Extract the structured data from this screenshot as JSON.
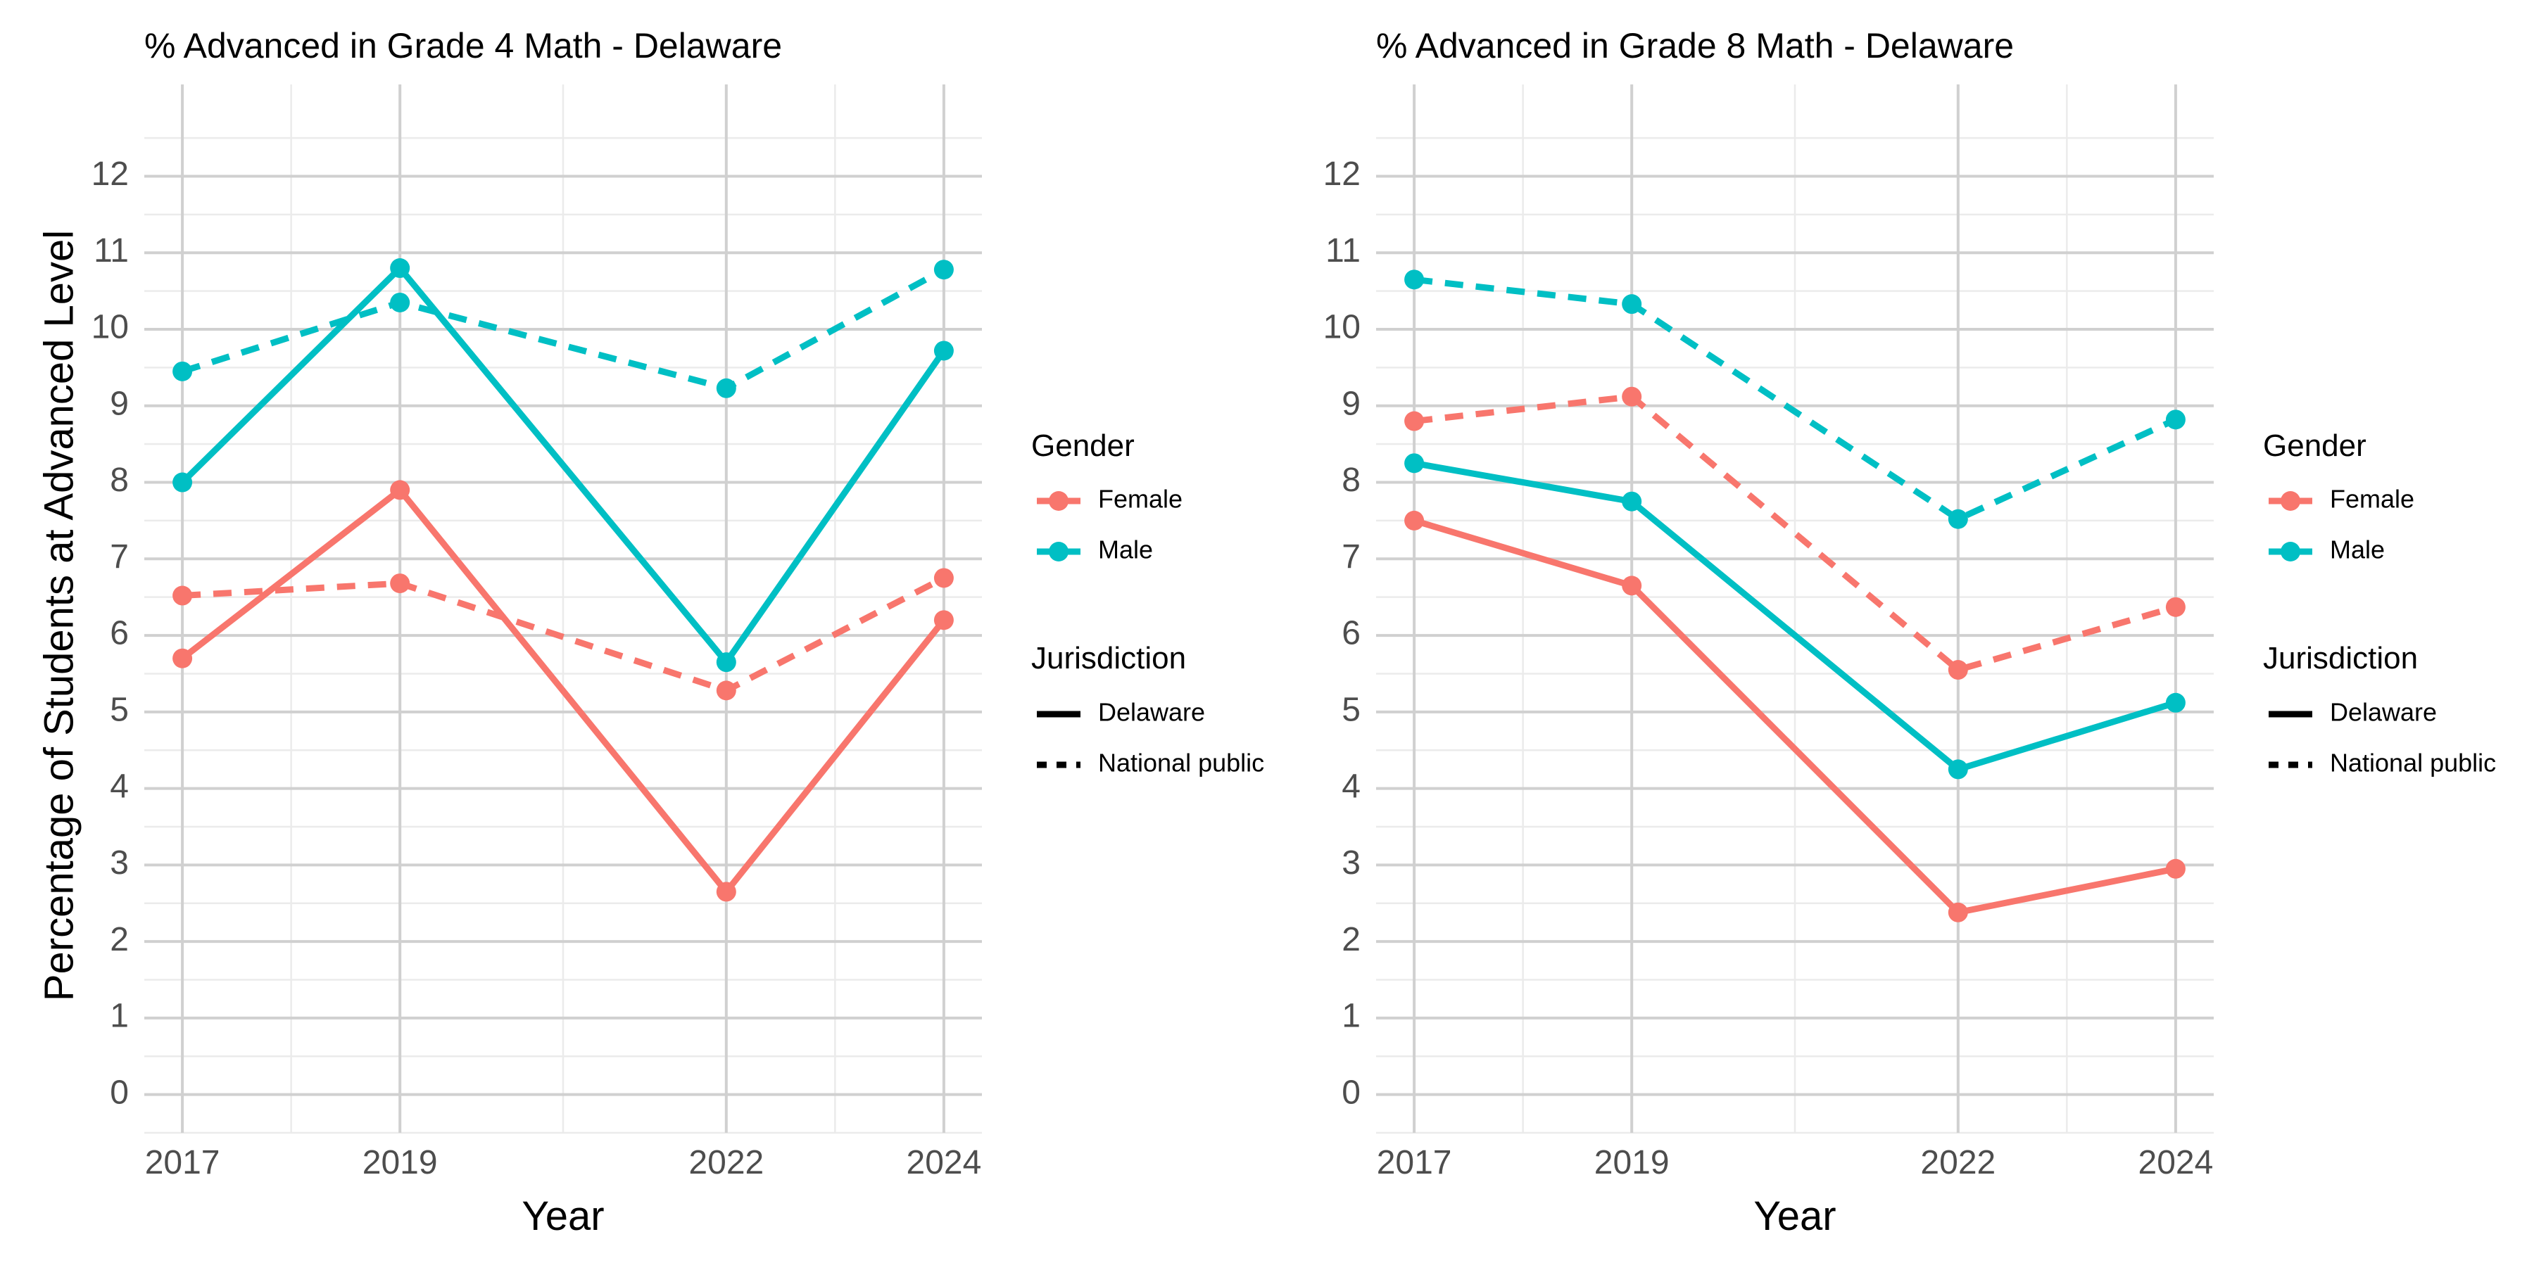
{
  "figure": {
    "ylabel": "Percentage of Students at Advanced Level"
  },
  "legend": {
    "gender_title": "Gender",
    "gender_items": [
      {
        "label": "Female",
        "color": "#F8766D"
      },
      {
        "label": "Male",
        "color": "#00BFC4"
      }
    ],
    "jurisdiction_title": "Jurisdiction",
    "jurisdiction_items": [
      {
        "label": "Delaware",
        "linetype": "solid"
      },
      {
        "label": "National public",
        "linetype": "dashed"
      }
    ]
  },
  "chart_data": [
    {
      "type": "line",
      "title": "% Advanced in Grade 4 Math - Delaware",
      "xlabel": "Year",
      "ylabel": "Percentage of Students at Advanced Level",
      "x": [
        2017,
        2019,
        2022,
        2024
      ],
      "xticks": [
        "2017",
        "2019",
        "2022",
        "2024"
      ],
      "yticks": [
        "0",
        "1",
        "2",
        "3",
        "4",
        "5",
        "6",
        "7",
        "8",
        "9",
        "10",
        "11",
        "12"
      ],
      "ylim": [
        -0.5,
        13.2
      ],
      "xlim": [
        2016.65,
        2024.35
      ],
      "grid": true,
      "series": [
        {
          "gender": "Female",
          "jurisdiction": "Delaware",
          "values": [
            5.7,
            7.9,
            2.65,
            6.2
          ]
        },
        {
          "gender": "Male",
          "jurisdiction": "Delaware",
          "values": [
            8.0,
            10.8,
            5.65,
            9.72
          ]
        },
        {
          "gender": "Female",
          "jurisdiction": "National public",
          "values": [
            6.52,
            6.68,
            5.28,
            6.75
          ]
        },
        {
          "gender": "Male",
          "jurisdiction": "National public",
          "values": [
            9.45,
            10.35,
            9.23,
            10.78
          ]
        }
      ]
    },
    {
      "type": "line",
      "title": "% Advanced in Grade 8 Math - Delaware",
      "xlabel": "Year",
      "ylabel": "",
      "x": [
        2017,
        2019,
        2022,
        2024
      ],
      "xticks": [
        "2017",
        "2019",
        "2022",
        "2024"
      ],
      "yticks": [
        "0",
        "1",
        "2",
        "3",
        "4",
        "5",
        "6",
        "7",
        "8",
        "9",
        "10",
        "11",
        "12"
      ],
      "ylim": [
        -0.5,
        13.2
      ],
      "xlim": [
        2016.65,
        2024.35
      ],
      "grid": true,
      "series": [
        {
          "gender": "Female",
          "jurisdiction": "Delaware",
          "values": [
            7.5,
            6.65,
            2.38,
            2.95
          ]
        },
        {
          "gender": "Male",
          "jurisdiction": "Delaware",
          "values": [
            8.25,
            7.75,
            4.25,
            5.12
          ]
        },
        {
          "gender": "Female",
          "jurisdiction": "National public",
          "values": [
            8.8,
            9.12,
            5.55,
            6.37
          ]
        },
        {
          "gender": "Male",
          "jurisdiction": "National public",
          "values": [
            10.65,
            10.33,
            7.52,
            8.82
          ]
        }
      ]
    }
  ]
}
